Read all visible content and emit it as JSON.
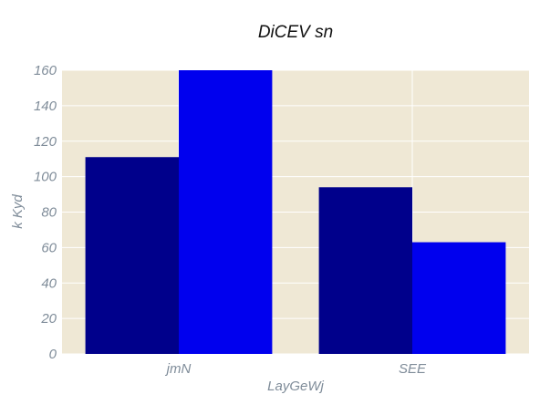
{
  "chart_data": {
    "type": "bar",
    "title": "DiCEV sn",
    "xlabel": "LayGeWj",
    "ylabel": "k Kyd",
    "categories": [
      "jmN",
      "SEE"
    ],
    "series": [
      {
        "values": [
          111,
          94
        ],
        "color": "#00008b"
      },
      {
        "values": [
          160,
          63
        ],
        "color": "#0000ee"
      }
    ],
    "ylim": [
      0,
      160
    ],
    "yticks": [
      0,
      20,
      40,
      60,
      80,
      100,
      120,
      140,
      160
    ],
    "grid": true,
    "legend": "none",
    "colors": {
      "plot_background": "#efe8d5",
      "grid": "#ffffff",
      "tick_text": "#7f8c99",
      "title_text": "#111111"
    }
  }
}
